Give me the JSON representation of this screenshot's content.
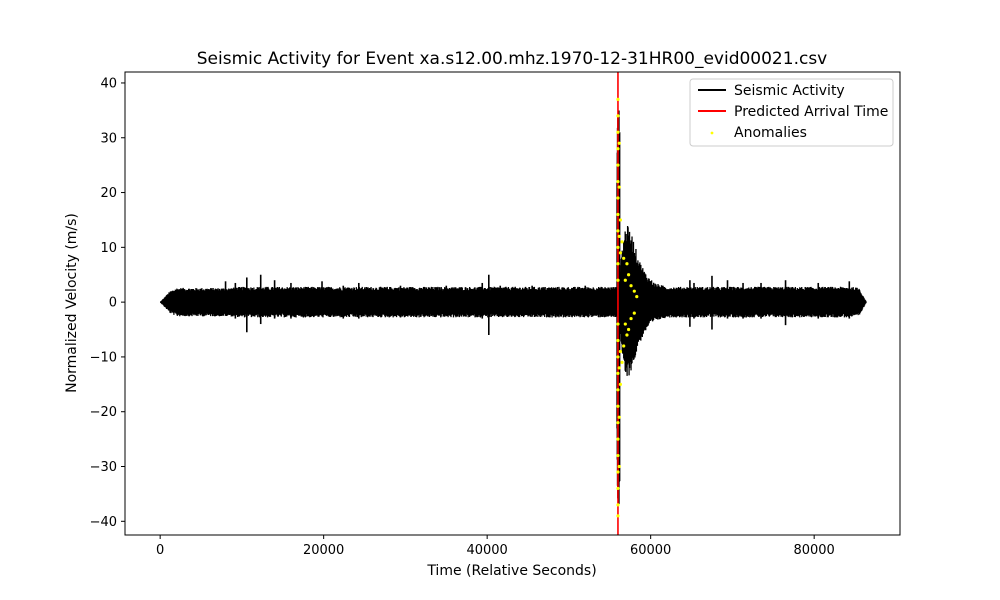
{
  "chart_data": {
    "type": "line",
    "title": "Seismic Activity for Event xa.s12.00.mhz.1970-12-31HR00_evid00021.csv",
    "xlabel": "Time (Relative Seconds)",
    "ylabel": "Normalized Velocity (m/s)",
    "xlim": [
      -4300,
      90500
    ],
    "ylim": [
      -42.5,
      42
    ],
    "xticks": [
      0,
      20000,
      40000,
      60000,
      80000
    ],
    "yticks": [
      40,
      30,
      20,
      10,
      0,
      -10,
      -20,
      -30,
      -40
    ],
    "grid": false,
    "legend_position": "top-right",
    "colors": {
      "seismic": "#000000",
      "arrival": "#ff0000",
      "anomalies": "#ffff00"
    },
    "series": [
      {
        "name": "Seismic Activity",
        "kind": "line",
        "noise_band": 2.5,
        "envelope": [
          [
            0,
            0
          ],
          [
            300,
            0.5
          ],
          [
            1200,
            2.0
          ],
          [
            2000,
            2.6
          ],
          [
            8500,
            2.6
          ],
          [
            10000,
            2.8
          ],
          [
            55800,
            2.8
          ],
          [
            56000,
            2.5
          ],
          [
            56500,
            10
          ],
          [
            57000,
            14.5
          ],
          [
            57800,
            12
          ],
          [
            58500,
            8
          ],
          [
            59500,
            5
          ],
          [
            60500,
            3.5
          ],
          [
            62000,
            2.8
          ],
          [
            84500,
            2.8
          ],
          [
            85500,
            2.6
          ],
          [
            86400,
            0
          ]
        ],
        "spikes": [
          {
            "x": 8000,
            "hi": 3.8,
            "lo": -2.5
          },
          {
            "x": 9200,
            "hi": 3.5,
            "lo": -3
          },
          {
            "x": 10600,
            "hi": 4.5,
            "lo": -5.5
          },
          {
            "x": 12300,
            "hi": 5,
            "lo": -4
          },
          {
            "x": 14000,
            "hi": 4,
            "lo": -3
          },
          {
            "x": 16000,
            "hi": 3.5,
            "lo": -3
          },
          {
            "x": 19800,
            "hi": 3.8,
            "lo": -2.5
          },
          {
            "x": 22400,
            "hi": 3,
            "lo": -3
          },
          {
            "x": 24300,
            "hi": 3.5,
            "lo": -3
          },
          {
            "x": 29400,
            "hi": 3,
            "lo": -2.8
          },
          {
            "x": 35000,
            "hi": 3,
            "lo": -2.5
          },
          {
            "x": 39400,
            "hi": 3.5,
            "lo": -3
          },
          {
            "x": 40200,
            "hi": 5,
            "lo": -6
          },
          {
            "x": 41600,
            "hi": 3,
            "lo": -2.5
          },
          {
            "x": 45500,
            "hi": 3,
            "lo": -2.5
          },
          {
            "x": 52000,
            "hi": 3,
            "lo": -2.5
          },
          {
            "x": 64800,
            "hi": 4,
            "lo": -4.5
          },
          {
            "x": 65300,
            "hi": 3.5,
            "lo": -3
          },
          {
            "x": 67500,
            "hi": 4.8,
            "lo": -5
          },
          {
            "x": 69400,
            "hi": 4,
            "lo": -3
          },
          {
            "x": 71300,
            "hi": 3.5,
            "lo": -3
          },
          {
            "x": 73500,
            "hi": 3.5,
            "lo": -3
          },
          {
            "x": 76500,
            "hi": 4,
            "lo": -4.2
          },
          {
            "x": 80500,
            "hi": 3.5,
            "lo": -3
          },
          {
            "x": 84300,
            "hi": 3.8,
            "lo": -3
          }
        ],
        "event_burst": {
          "x_start": 55900,
          "x_end": 56200,
          "hi": 37,
          "lo": -39
        }
      },
      {
        "name": "Predicted Arrival Time",
        "kind": "vline",
        "x": 56000
      },
      {
        "name": "Anomalies",
        "kind": "scatter",
        "x_range": [
          55900,
          58300
        ],
        "points": [
          [
            56000,
            37
          ],
          [
            56000,
            34
          ],
          [
            56000,
            31
          ],
          [
            56000,
            28
          ],
          [
            56000,
            25
          ],
          [
            56000,
            22
          ],
          [
            56000,
            19
          ],
          [
            56000,
            16
          ],
          [
            56000,
            13
          ],
          [
            56000,
            10
          ],
          [
            56000,
            7
          ],
          [
            56000,
            4
          ],
          [
            56000,
            -4
          ],
          [
            56000,
            -7
          ],
          [
            56000,
            -10
          ],
          [
            56000,
            -13
          ],
          [
            56000,
            -16
          ],
          [
            56000,
            -19
          ],
          [
            56000,
            -22
          ],
          [
            56000,
            -25
          ],
          [
            56000,
            -28
          ],
          [
            56000,
            -31
          ],
          [
            56000,
            -34
          ],
          [
            56000,
            -37
          ],
          [
            56000,
            -39
          ],
          [
            56150,
            29
          ],
          [
            56150,
            21
          ],
          [
            56150,
            12
          ],
          [
            56150,
            -12
          ],
          [
            56150,
            -21
          ],
          [
            56150,
            -30
          ],
          [
            56300,
            15
          ],
          [
            56300,
            9
          ],
          [
            56300,
            -9
          ],
          [
            56300,
            -15
          ],
          [
            56500,
            11
          ],
          [
            56500,
            -11
          ],
          [
            56700,
            8
          ],
          [
            56700,
            -8
          ],
          [
            56900,
            4
          ],
          [
            56900,
            -4
          ],
          [
            57100,
            7
          ],
          [
            57100,
            -6
          ],
          [
            57300,
            5
          ],
          [
            57300,
            -5
          ],
          [
            57600,
            3
          ],
          [
            57600,
            -3
          ],
          [
            58000,
            2
          ],
          [
            58000,
            -2
          ],
          [
            58300,
            1
          ]
        ]
      }
    ]
  }
}
